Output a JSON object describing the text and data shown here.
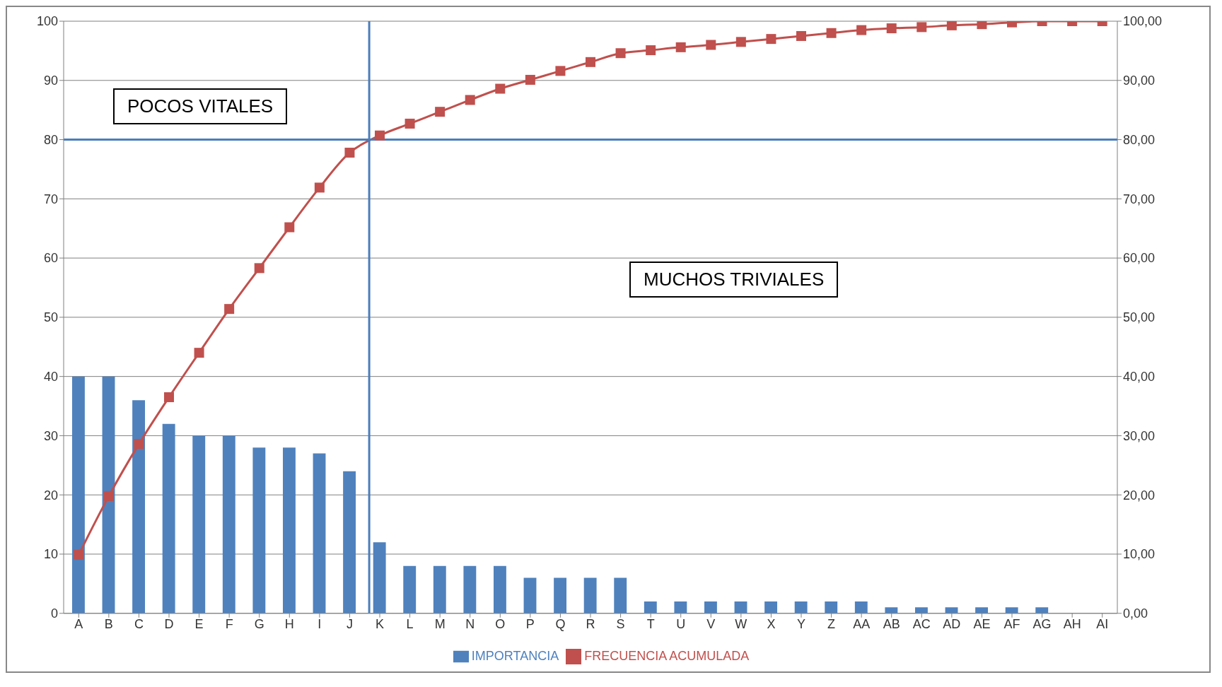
{
  "chart_data": {
    "type": "bar",
    "categories": [
      "A",
      "B",
      "C",
      "D",
      "E",
      "F",
      "G",
      "H",
      "I",
      "J",
      "K",
      "L",
      "M",
      "N",
      "O",
      "P",
      "Q",
      "R",
      "S",
      "T",
      "U",
      "V",
      "W",
      "X",
      "Y",
      "Z",
      "AA",
      "AB",
      "AC",
      "AD",
      "AE",
      "AF",
      "AG",
      "AH",
      "AI"
    ],
    "series": [
      {
        "name": "IMPORTANCIA",
        "color": "#4f81bd",
        "values": [
          40,
          40,
          36,
          32,
          30,
          30,
          28,
          28,
          27,
          24,
          12,
          8,
          8,
          8,
          8,
          6,
          6,
          6,
          6,
          2,
          2,
          2,
          2,
          2,
          2,
          2,
          2,
          1,
          1,
          1,
          1,
          1,
          1,
          0,
          0
        ]
      },
      {
        "name": "FRECUENCIA ACUMULADA",
        "type": "line",
        "axis": "y2",
        "color": "#c0504d",
        "marker": "square",
        "values": [
          9.9,
          19.8,
          28.6,
          36.5,
          44.0,
          51.4,
          58.3,
          65.2,
          71.9,
          77.8,
          80.7,
          82.7,
          84.7,
          86.7,
          88.6,
          90.1,
          91.6,
          93.1,
          94.6,
          95.1,
          95.6,
          96.0,
          96.5,
          97.0,
          97.5,
          98.0,
          98.5,
          98.8,
          99.0,
          99.3,
          99.5,
          99.8,
          100,
          100,
          100
        ]
      }
    ],
    "ylim": [
      0,
      100
    ],
    "yticks": [
      0,
      10,
      20,
      30,
      40,
      50,
      60,
      70,
      80,
      90,
      100
    ],
    "y2lim": [
      0,
      100
    ],
    "y2ticks": [
      {
        "value": 0,
        "label": "0,00"
      },
      {
        "value": 10,
        "label": "10,00"
      },
      {
        "value": 20,
        "label": "20,00"
      },
      {
        "value": 30,
        "label": "30,00"
      },
      {
        "value": 40,
        "label": "40,00"
      },
      {
        "value": 50,
        "label": "50,00"
      },
      {
        "value": 60,
        "label": "60,00"
      },
      {
        "value": 70,
        "label": "70,00"
      },
      {
        "value": 80,
        "label": "80,00"
      },
      {
        "value": 90,
        "label": "90,00"
      },
      {
        "value": 100,
        "label": "100,00"
      }
    ],
    "grid": "y",
    "legend": "bottom",
    "ref_lines": [
      {
        "axis": "x",
        "value": "K",
        "color": "#4a7ebb"
      },
      {
        "axis": "y2",
        "value": 80,
        "color": "#4a7ebb"
      }
    ],
    "annotations": [
      "POCOS VITALES",
      "MUCHOS TRIVIALES"
    ]
  }
}
